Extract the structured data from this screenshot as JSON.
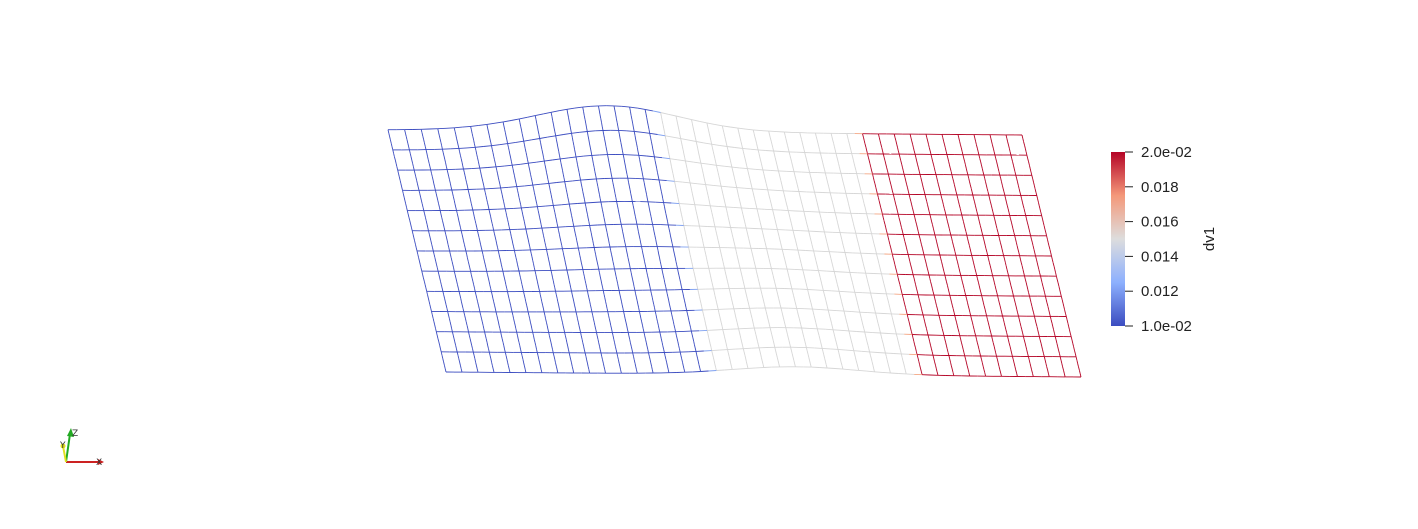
{
  "scalar_bar": {
    "title": "dv1",
    "range": [
      0.01,
      0.02
    ],
    "tick_labels": [
      "2.0e-02",
      "0.018",
      "0.016",
      "0.014",
      "0.012",
      "1.0e-02"
    ],
    "tick_values": [
      0.02,
      0.018,
      0.016,
      0.014,
      0.012,
      0.01
    ],
    "colormap": [
      "#3b4cc0",
      "#8db0fe",
      "#dddddd",
      "#f4987a",
      "#b40426"
    ]
  },
  "mesh": {
    "columns": 40,
    "rows": 12,
    "regions": {
      "left_color": "#3b4cc0",
      "middle_color": "#d6d6d6",
      "right_color": "#b40426",
      "transition_colors": [
        "#7ea0f0",
        "#f4a582"
      ]
    }
  },
  "orientation_axes": {
    "x_label": "X",
    "y_label": "Y",
    "z_label": "Z",
    "x_color": "#cc2222",
    "y_color": "#e0e020",
    "z_color": "#22aa22"
  }
}
